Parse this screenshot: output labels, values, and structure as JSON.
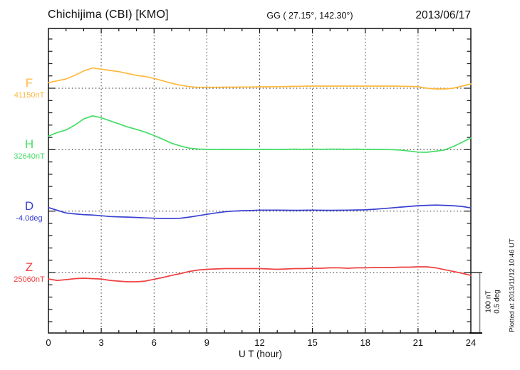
{
  "header": {
    "title": "Chichijima (CBI)  [KMO]",
    "coords": "GG ( 27.15°, 142.30°)",
    "date": "2013/06/17"
  },
  "footer": {
    "xlabel": "U T (hour)"
  },
  "side_note": "Plotted at 2013/11/12 10:46 UT",
  "scale_bar": {
    "line1": "100 nT",
    "line2": "0.5 deg"
  },
  "x_tick_labels": [
    "0",
    "3",
    "6",
    "9",
    "12",
    "15",
    "18",
    "21",
    "24"
  ],
  "chart_data": {
    "type": "line",
    "xlabel": "U T (hour)",
    "x_range": [
      0,
      24
    ],
    "x_major_ticks": [
      0,
      3,
      6,
      9,
      12,
      15,
      18,
      21,
      24
    ],
    "x_minor_step_hours": 1,
    "grid": "dotted vertical lines at 3h intervals, dotted horizontal baseline per channel",
    "sample_step_hours": 0.5,
    "scale_per_division": {
      "nT": 100,
      "deg": 0.5
    },
    "series": [
      {
        "id": "F",
        "label": "F",
        "unit": "nT",
        "baseline_label": "41150nT",
        "baseline_value": 41150,
        "color": "#FFB83D",
        "offsets": [
          9,
          12,
          15,
          21,
          28,
          33,
          31,
          29,
          27,
          24,
          21,
          19,
          16,
          12,
          8,
          5,
          2.5,
          1.5,
          1.5,
          1.5,
          1.7,
          1.7,
          2,
          2,
          2.3,
          2.3,
          2.5,
          2.8,
          3,
          3.2,
          3.5,
          3.5,
          3.5,
          3.5,
          3.5,
          3.5,
          3.5,
          3.5,
          3.5,
          3.5,
          3.3,
          3,
          2.5,
          0,
          -1.2,
          -1.2,
          0,
          3.5,
          7
        ]
      },
      {
        "id": "H",
        "label": "H",
        "unit": "nT",
        "baseline_label": "32640nT",
        "baseline_value": 32640,
        "color": "#44DD66",
        "offsets": [
          22,
          28,
          32,
          40,
          50,
          55,
          52,
          47,
          42,
          37,
          33,
          28.5,
          23,
          17,
          10.5,
          6,
          2.5,
          1,
          0.5,
          0.3,
          0.5,
          0.3,
          0.5,
          0.3,
          0.5,
          0.5,
          0.3,
          0.5,
          0.8,
          0.5,
          0.8,
          0.5,
          0.8,
          0.8,
          0.5,
          0.8,
          0.5,
          0.5,
          0.3,
          0,
          -0.6,
          -2.3,
          -4,
          -4.2,
          -2.5,
          -0.5,
          5,
          12,
          19
        ]
      },
      {
        "id": "D",
        "label": "D",
        "unit": "deg",
        "baseline_label": "-4.0deg",
        "baseline_value": -4.0,
        "color": "#3940D0",
        "offsets": [
          0.029,
          0.006,
          -0.015,
          -0.023,
          -0.029,
          -0.032,
          -0.038,
          -0.044,
          -0.047,
          -0.049,
          -0.052,
          -0.055,
          -0.058,
          -0.061,
          -0.061,
          -0.058,
          -0.049,
          -0.038,
          -0.026,
          -0.015,
          -0.006,
          0,
          0.003,
          0.005,
          0.008,
          0.008,
          0.008,
          0.007,
          0.006,
          0.007,
          0.008,
          0.007,
          0.006,
          0.007,
          0.008,
          0.009,
          0.01,
          0.015,
          0.02,
          0.026,
          0.032,
          0.038,
          0.044,
          0.047,
          0.049,
          0.047,
          0.044,
          0.038,
          0.026
        ]
      },
      {
        "id": "Z",
        "label": "Z",
        "unit": "nT",
        "baseline_label": "25060nT",
        "baseline_value": 25060,
        "color": "#EE4040",
        "offsets": [
          -10.5,
          -12.8,
          -11.6,
          -10,
          -9.3,
          -10,
          -10.5,
          -12.8,
          -14,
          -15.1,
          -15.1,
          -14,
          -11,
          -8.1,
          -4.7,
          -1.7,
          1.7,
          4.1,
          5.2,
          5.8,
          6.4,
          6.4,
          6.4,
          6.4,
          6.4,
          5.8,
          5.2,
          5.8,
          6.4,
          6.4,
          7,
          7,
          7.6,
          7.6,
          7,
          7.6,
          7.6,
          8.1,
          8.1,
          8.1,
          8.7,
          8.7,
          9.3,
          9.3,
          7.6,
          4.7,
          1.7,
          -1.2,
          -4.7
        ]
      }
    ]
  }
}
